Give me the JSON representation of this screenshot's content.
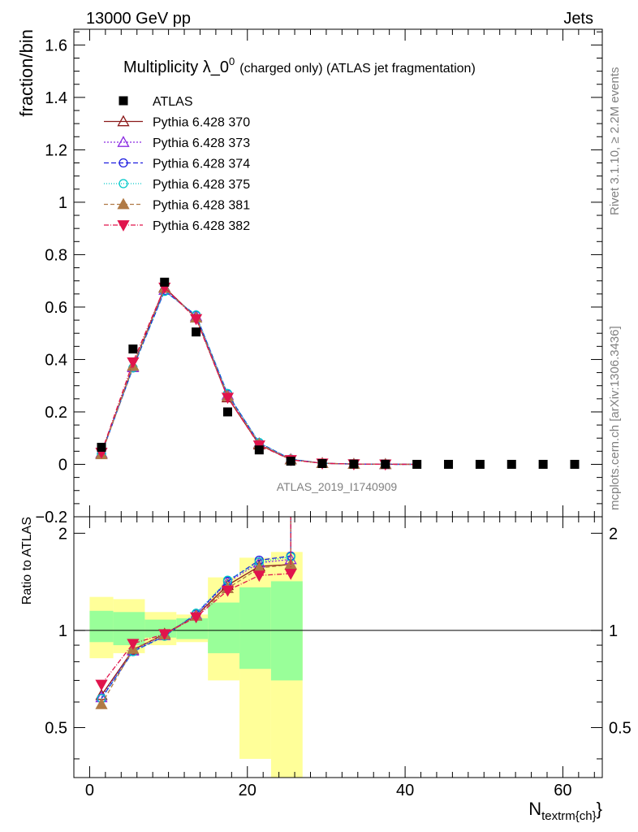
{
  "header": {
    "left": "13000 GeV pp",
    "right": "Jets"
  },
  "title": {
    "main": "Multiplicity λ_0",
    "sup": "0",
    "suffix": "(charged only) (ATLAS jet fragmentation)"
  },
  "side_labels": {
    "rivet": "Rivet 3.1.10, ≥ 2.2M events",
    "mcplots": "mcplots.cern.ch [arXiv:1306.3436]"
  },
  "watermark": "ATLAS_2019_I1740909",
  "colors": {
    "ATLAS": "#000000",
    "p370": "#8b1a1a",
    "p373": "#8a2be2",
    "p374": "#1f1fe0",
    "p375": "#00c8c8",
    "p381": "#b07a46",
    "p382": "#e0144c",
    "band_inner": "#99ff99",
    "band_outer": "#ffff99"
  },
  "chart_data": [
    {
      "type": "scatter",
      "panel": "main",
      "ylabel": "fraction/bin",
      "xlim": [
        -2,
        65
      ],
      "ylim": [
        -0.2,
        1.66
      ],
      "yticks": [
        -0.2,
        0,
        0.2,
        0.4,
        0.6,
        0.8,
        1,
        1.2,
        1.4,
        1.6
      ],
      "yticklabels": [
        "−0.2",
        "0",
        "0.2",
        "0.4",
        "0.6",
        "0.8",
        "1",
        "1.2",
        "1.4",
        "1.6"
      ],
      "legend_position": "top-left",
      "data_series": {
        "name": "ATLAS",
        "x": [
          1.5,
          5.5,
          9.5,
          13.5,
          17.5,
          21.5,
          25.5,
          29.5,
          33.5,
          37.5,
          41.5,
          45.5,
          49.5,
          53.5,
          57.5,
          61.5
        ],
        "y": [
          0.065,
          0.44,
          0.695,
          0.505,
          0.2,
          0.055,
          0.012,
          0.003,
          0.001,
          0.0005,
          0.0,
          0.0,
          0.0,
          0.0,
          0.0,
          0.0
        ]
      },
      "x": [
        1.5,
        5.5,
        9.5,
        13.5,
        17.5,
        21.5,
        25.5,
        29.5,
        33.5,
        37.5,
        41.5
      ],
      "series": [
        {
          "name": "Pythia 6.428 370",
          "key": "p370",
          "marker": "tri-open",
          "dash": "",
          "y": [
            0.042,
            0.375,
            0.675,
            0.56,
            0.255,
            0.075,
            0.018,
            0.004,
            0.001,
            0.0003,
            0.0
          ]
        },
        {
          "name": "Pythia 6.428 373",
          "key": "p373",
          "marker": "tri-open",
          "dash": "2,2",
          "y": [
            0.04,
            0.37,
            0.665,
            0.565,
            0.265,
            0.08,
            0.019,
            0.004,
            0.001,
            0.0003,
            0.0
          ]
        },
        {
          "name": "Pythia 6.428 374",
          "key": "p374",
          "marker": "circle-open",
          "dash": "6,3",
          "y": [
            0.04,
            0.368,
            0.662,
            0.568,
            0.268,
            0.082,
            0.02,
            0.004,
            0.001,
            0.0003,
            0.0
          ]
        },
        {
          "name": "Pythia 6.428 375",
          "key": "p375",
          "marker": "circle-open",
          "dash": "1,2",
          "y": [
            0.04,
            0.368,
            0.66,
            0.57,
            0.27,
            0.083,
            0.02,
            0.004,
            0.001,
            0.0003,
            0.0
          ]
        },
        {
          "name": "Pythia 6.428 381",
          "key": "p381",
          "marker": "tri-filled",
          "dash": "5,3",
          "y": [
            0.038,
            0.375,
            0.672,
            0.56,
            0.26,
            0.078,
            0.018,
            0.004,
            0.001,
            0.0003,
            0.0
          ]
        },
        {
          "name": "Pythia 6.428 382",
          "key": "p382",
          "marker": "tridown-filled",
          "dash": "6,2,1,2",
          "y": [
            0.045,
            0.39,
            0.675,
            0.555,
            0.255,
            0.073,
            0.017,
            0.004,
            0.001,
            0.0003,
            0.0
          ]
        }
      ]
    },
    {
      "type": "line",
      "panel": "ratio",
      "ylabel": "Ratio to ATLAS",
      "xlabel": "N",
      "xlabel_sub": "textrm{ch}",
      "xlabel_close": "}",
      "xlim": [
        -2,
        65
      ],
      "ylim": [
        0.35,
        2.25
      ],
      "yticks": [
        0.5,
        1,
        2
      ],
      "yticklabels": [
        "0.5",
        "1",
        "2"
      ],
      "xticks": [
        0,
        20,
        40,
        60
      ],
      "xticklabels": [
        "0",
        "20",
        "40",
        "60"
      ],
      "reference_line": 1,
      "bands": [
        {
          "x0": 0,
          "x1": 3,
          "inner": [
            0.92,
            1.15
          ],
          "outer": [
            0.82,
            1.27
          ]
        },
        {
          "x0": 3,
          "x1": 7,
          "inner": [
            0.9,
            1.14
          ],
          "outer": [
            0.85,
            1.25
          ]
        },
        {
          "x0": 7,
          "x1": 11,
          "inner": [
            0.95,
            1.08
          ],
          "outer": [
            0.9,
            1.14
          ]
        },
        {
          "x0": 11,
          "x1": 15,
          "inner": [
            0.94,
            1.09
          ],
          "outer": [
            0.92,
            1.12
          ]
        },
        {
          "x0": 15,
          "x1": 19,
          "inner": [
            0.85,
            1.22
          ],
          "outer": [
            0.7,
            1.46
          ]
        },
        {
          "x0": 19,
          "x1": 23,
          "inner": [
            0.76,
            1.36
          ],
          "outer": [
            0.4,
            1.68
          ]
        },
        {
          "x0": 23,
          "x1": 27,
          "inner": [
            0.7,
            1.42
          ],
          "outer": [
            0.3,
            1.75
          ]
        }
      ],
      "x": [
        1.5,
        5.5,
        9.5,
        13.5,
        17.5,
        21.5,
        25.5
      ],
      "series": [
        {
          "name": "Pythia 6.428 370",
          "key": "p370",
          "marker": "tri-open",
          "dash": "",
          "y": [
            0.63,
            0.87,
            0.975,
            1.11,
            1.38,
            1.58,
            1.6
          ]
        },
        {
          "name": "Pythia 6.428 373",
          "key": "p373",
          "marker": "tri-open",
          "dash": "2,2",
          "y": [
            0.62,
            0.865,
            0.965,
            1.12,
            1.41,
            1.62,
            1.66
          ]
        },
        {
          "name": "Pythia 6.428 374",
          "key": "p374",
          "marker": "circle-open",
          "dash": "6,3",
          "y": [
            0.615,
            0.86,
            0.96,
            1.125,
            1.42,
            1.65,
            1.7
          ]
        },
        {
          "name": "Pythia 6.428 375",
          "key": "p375",
          "marker": "circle-open",
          "dash": "1,2",
          "y": [
            0.615,
            0.86,
            0.96,
            1.13,
            1.43,
            1.63,
            1.69
          ]
        },
        {
          "name": "Pythia 6.428 381",
          "key": "p381",
          "marker": "tri-filled",
          "dash": "5,3",
          "y": [
            0.59,
            0.875,
            0.97,
            1.11,
            1.35,
            1.56,
            1.6
          ]
        },
        {
          "name": "Pythia 6.428 382",
          "key": "p382",
          "marker": "tridown-filled",
          "dash": "6,2,1,2",
          "y": [
            0.68,
            0.91,
            0.975,
            1.1,
            1.33,
            1.48,
            1.5
          ]
        }
      ]
    }
  ]
}
